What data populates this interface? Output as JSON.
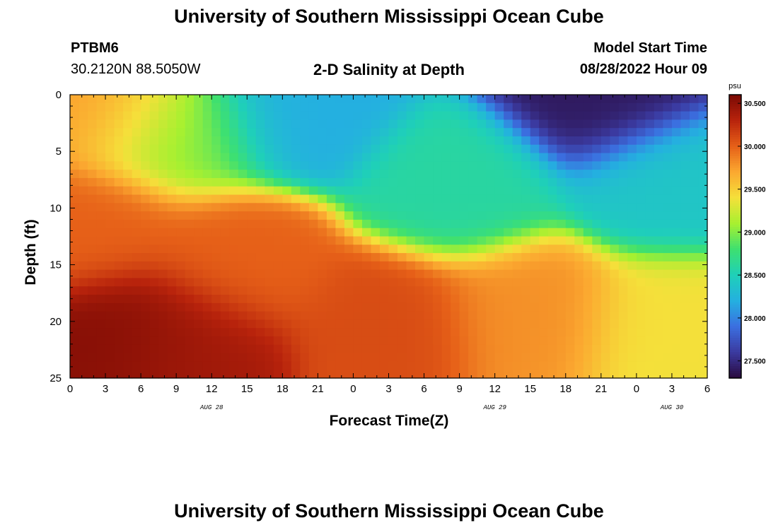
{
  "header": {
    "title": "University of Southern Mississippi Ocean Cube",
    "station_id": "PTBM6",
    "coordinates": "30.2120N  88.5050W",
    "subtitle": "2-D Salinity at Depth",
    "model_label": "Model Start Time",
    "model_time": "08/28/2022 Hour 09"
  },
  "footer": {
    "title": "University of Southern Mississippi Ocean Cube"
  },
  "chart_data": {
    "type": "heatmap",
    "title": "2-D Salinity at Depth",
    "xlabel": "Forecast Time(Z)",
    "ylabel": "Depth (ft)",
    "x_hours_range": [
      0,
      54
    ],
    "y_range": [
      0,
      25
    ],
    "x_tick_labels": [
      "0",
      "3",
      "6",
      "9",
      "12",
      "15",
      "18",
      "21",
      "0",
      "3",
      "6",
      "9",
      "12",
      "15",
      "18",
      "21",
      "0",
      "3",
      "6"
    ],
    "y_tick_labels": [
      "0",
      "5",
      "10",
      "15",
      "20",
      "25"
    ],
    "date_labels": [
      {
        "label": "AUG 28",
        "hour": 12
      },
      {
        "label": "AUG 29",
        "hour": 36
      },
      {
        "label": "AUG 30",
        "hour": 51
      }
    ],
    "colorbar": {
      "unit": "psu",
      "range": [
        27.3,
        30.6
      ],
      "ticks": [
        "30.500",
        "30.000",
        "29.500",
        "29.000",
        "28.500",
        "28.000",
        "27.500"
      ],
      "tick_values": [
        30.5,
        30.0,
        29.5,
        29.0,
        28.5,
        28.0,
        27.5
      ],
      "colors": [
        "#2a0a3f",
        "#3b3aa0",
        "#3b6fe0",
        "#24b0e0",
        "#1fd0b8",
        "#3ee070",
        "#a8f030",
        "#f5e03a",
        "#fba830",
        "#e66018",
        "#b8230c",
        "#7a0a04"
      ]
    },
    "features": [
      {
        "x_hour": 5,
        "depth_ft": 21,
        "salinity": 30.55
      },
      {
        "x_hour": 10,
        "depth_ft": 22,
        "salinity": 30.4
      },
      {
        "x_hour": 14,
        "depth_ft": 15,
        "salinity": 30.0
      },
      {
        "x_hour": 2,
        "depth_ft": 12,
        "salinity": 30.0
      },
      {
        "x_hour": 3,
        "depth_ft": 1,
        "salinity": 29.75
      },
      {
        "x_hour": 27,
        "depth_ft": 20,
        "salinity": 30.1
      },
      {
        "x_hour": 39,
        "depth_ft": 19,
        "salinity": 29.8
      },
      {
        "x_hour": 51,
        "depth_ft": 20,
        "salinity": 29.4
      },
      {
        "x_hour": 9,
        "depth_ft": 3,
        "salinity": 29.0
      },
      {
        "x_hour": 19,
        "depth_ft": 1,
        "salinity": 28.2
      },
      {
        "x_hour": 45,
        "depth_ft": 0,
        "salinity": 27.4
      },
      {
        "x_hour": 51,
        "depth_ft": 8,
        "salinity": 28.4
      },
      {
        "x_hour": 33,
        "depth_ft": 8,
        "salinity": 28.6
      }
    ]
  }
}
